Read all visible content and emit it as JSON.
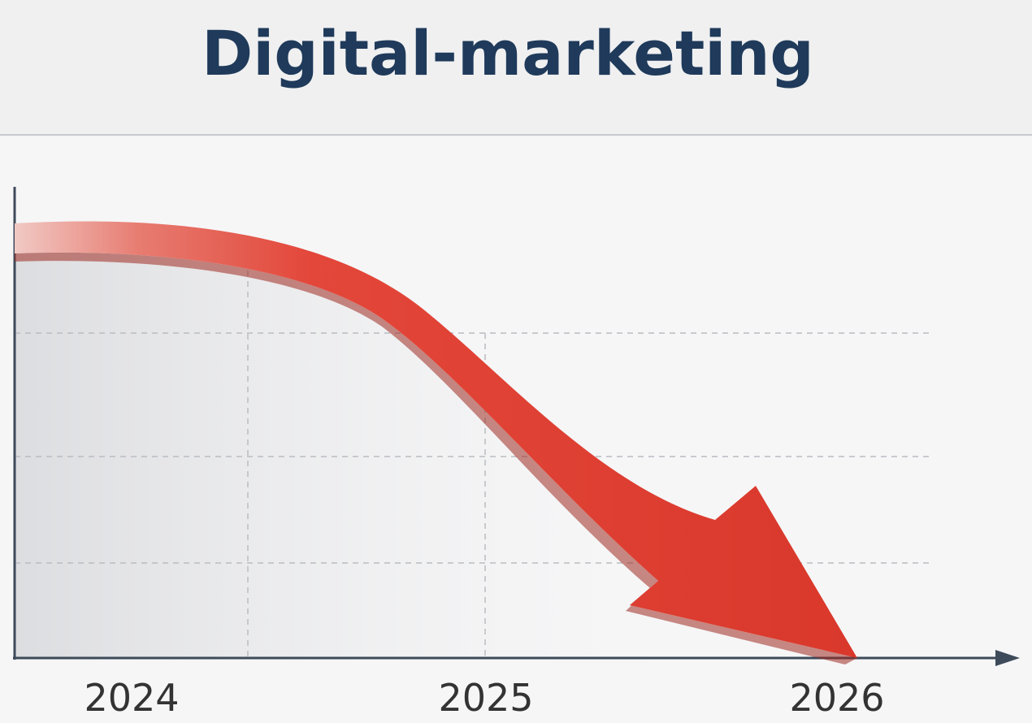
{
  "chart_data": {
    "type": "line",
    "title": "Digital-marketing",
    "categories": [
      "2024",
      "2025",
      "2026"
    ]
  }
}
